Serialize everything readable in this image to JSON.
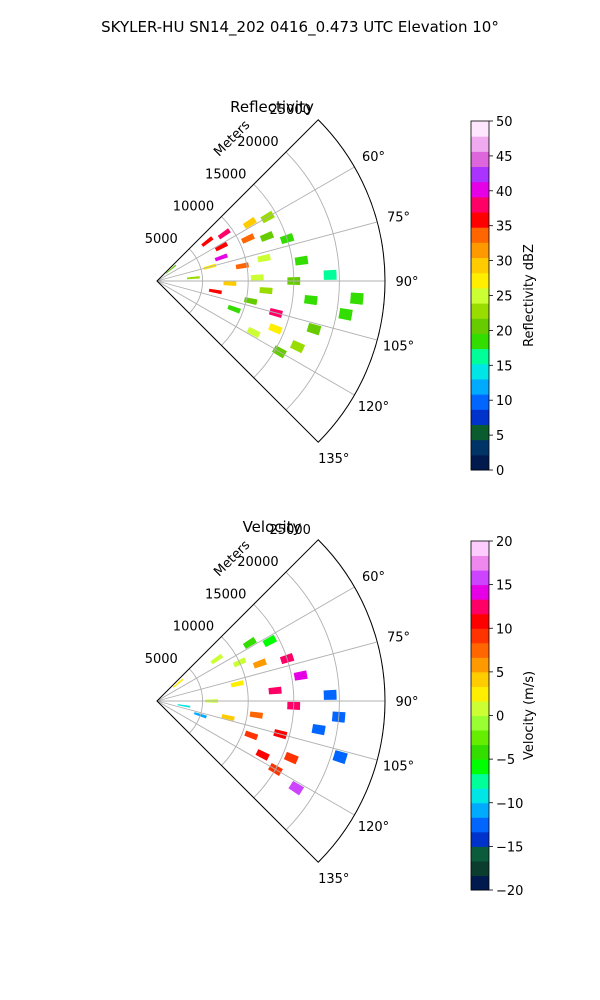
{
  "figure": {
    "suptitle": "SKYLER-HU  SN14_202  0416_0.473 UTC Elevation 10°"
  },
  "colors": {
    "grid": "#b0b0b0",
    "axis": "#000000",
    "reflectivity_stops": [
      "#001a4d",
      "#003366",
      "#0a5c2e",
      "#0033cc",
      "#0066ff",
      "#00aaff",
      "#00e5e5",
      "#00ff99",
      "#33dd00",
      "#66cc00",
      "#99dd00",
      "#ccff33",
      "#ffee00",
      "#ffcc00",
      "#ff9900",
      "#ff6600",
      "#ff0000",
      "#ff0066",
      "#e600e6",
      "#aa33ff",
      "#dd66dd",
      "#f0aaf0",
      "#ffe6ff"
    ],
    "velocity_stops": [
      "#001a4d",
      "#0a3d2e",
      "#0a5c3d",
      "#0033cc",
      "#0066ff",
      "#00aaff",
      "#00e5e5",
      "#00ff99",
      "#00ff00",
      "#33dd00",
      "#66ee00",
      "#99ff33",
      "#ccff33",
      "#ffee00",
      "#ffcc00",
      "#ff9900",
      "#ff6600",
      "#ff3300",
      "#ff0000",
      "#ff0066",
      "#e600e6",
      "#cc44ff",
      "#ee88ee",
      "#ffccff"
    ]
  },
  "chart_data": [
    {
      "type": "heatmap",
      "projection": "polar-sector",
      "title": "Reflectivity",
      "radial_label": "Meters",
      "radial_ticks": [
        5000,
        10000,
        15000,
        20000,
        25000
      ],
      "radial_tick_labels": [
        "5000",
        "10000",
        "15000",
        "20000",
        "25000"
      ],
      "rlim": [
        0,
        25000
      ],
      "theta_ticks": [
        60,
        75,
        90,
        105,
        120,
        135
      ],
      "theta_tick_labels": [
        "60°",
        "75°",
        "90°",
        "105°",
        "120°",
        "135°"
      ],
      "theta_range": [
        45,
        135
      ],
      "grid": true,
      "colorbar": {
        "label": "Reflectivity dBZ",
        "range": [
          0,
          50
        ],
        "ticks": [
          0,
          5,
          10,
          15,
          20,
          25,
          30,
          35,
          40,
          45,
          50
        ],
        "tick_labels": [
          "0",
          "5",
          "10",
          "15",
          "20",
          "25",
          "30",
          "35",
          "40",
          "45",
          "50"
        ]
      },
      "cells": [
        {
          "az": 50,
          "r": 2000,
          "v": 20
        },
        {
          "az": 52,
          "r": 7000,
          "v": 35
        },
        {
          "az": 55,
          "r": 9000,
          "v": 38
        },
        {
          "az": 58,
          "r": 12000,
          "v": 30
        },
        {
          "az": 60,
          "r": 14000,
          "v": 22
        },
        {
          "az": 62,
          "r": 8000,
          "v": 36
        },
        {
          "az": 65,
          "r": 11000,
          "v": 34
        },
        {
          "az": 68,
          "r": 13000,
          "v": 20
        },
        {
          "az": 70,
          "r": 7500,
          "v": 40
        },
        {
          "az": 72,
          "r": 15000,
          "v": 18
        },
        {
          "az": 75,
          "r": 6000,
          "v": 28
        },
        {
          "az": 78,
          "r": 12000,
          "v": 26
        },
        {
          "az": 80,
          "r": 9500,
          "v": 33
        },
        {
          "az": 82,
          "r": 16000,
          "v": 19
        },
        {
          "az": 85,
          "r": 4000,
          "v": 22
        },
        {
          "az": 88,
          "r": 11000,
          "v": 24
        },
        {
          "az": 90,
          "r": 15000,
          "v": 20
        },
        {
          "az": 92,
          "r": 8000,
          "v": 30
        },
        {
          "az": 95,
          "r": 12000,
          "v": 22
        },
        {
          "az": 97,
          "r": 17000,
          "v": 18
        },
        {
          "az": 100,
          "r": 6500,
          "v": 36
        },
        {
          "az": 102,
          "r": 10500,
          "v": 21
        },
        {
          "az": 105,
          "r": 13500,
          "v": 38
        },
        {
          "az": 107,
          "r": 18000,
          "v": 20
        },
        {
          "az": 110,
          "r": 9000,
          "v": 18
        },
        {
          "az": 112,
          "r": 14000,
          "v": 28
        },
        {
          "az": 115,
          "r": 17000,
          "v": 22
        },
        {
          "az": 118,
          "r": 12000,
          "v": 24
        },
        {
          "az": 120,
          "r": 15500,
          "v": 20
        },
        {
          "az": 95,
          "r": 22000,
          "v": 19
        },
        {
          "az": 100,
          "r": 21000,
          "v": 18
        },
        {
          "az": 88,
          "r": 19000,
          "v": 17
        }
      ]
    },
    {
      "type": "heatmap",
      "projection": "polar-sector",
      "title": "Velocity",
      "radial_label": "Meters",
      "radial_ticks": [
        5000,
        10000,
        15000,
        20000,
        25000
      ],
      "radial_tick_labels": [
        "5000",
        "10000",
        "15000",
        "20000",
        "25000"
      ],
      "rlim": [
        0,
        25000
      ],
      "theta_ticks": [
        60,
        75,
        90,
        105,
        120,
        135
      ],
      "theta_tick_labels": [
        "60°",
        "75°",
        "90°",
        "105°",
        "120°",
        "135°"
      ],
      "theta_range": [
        45,
        135
      ],
      "grid": true,
      "colorbar": {
        "label": "Velocity (m/s)",
        "range": [
          -20,
          20
        ],
        "ticks": [
          -20,
          -15,
          -10,
          -5,
          0,
          5,
          10,
          15,
          20
        ],
        "tick_labels": [
          "−20",
          "−15",
          "−10",
          "−5",
          "0",
          "5",
          "10",
          "15",
          "20"
        ]
      },
      "cells": [
        {
          "az": 50,
          "r": 3000,
          "v": 2
        },
        {
          "az": 55,
          "r": 8000,
          "v": 1
        },
        {
          "az": 58,
          "r": 12000,
          "v": -4
        },
        {
          "az": 62,
          "r": 14000,
          "v": -6
        },
        {
          "az": 65,
          "r": 10000,
          "v": 0
        },
        {
          "az": 70,
          "r": 12000,
          "v": 6
        },
        {
          "az": 72,
          "r": 15000,
          "v": 12
        },
        {
          "az": 78,
          "r": 9000,
          "v": 3
        },
        {
          "az": 80,
          "r": 16000,
          "v": 14
        },
        {
          "az": 85,
          "r": 13000,
          "v": 13
        },
        {
          "az": 88,
          "r": 19000,
          "v": -13
        },
        {
          "az": 90,
          "r": 6000,
          "v": 1
        },
        {
          "az": 92,
          "r": 15000,
          "v": 13
        },
        {
          "az": 95,
          "r": 20000,
          "v": -12
        },
        {
          "az": 98,
          "r": 11000,
          "v": 7
        },
        {
          "az": 100,
          "r": 18000,
          "v": -12
        },
        {
          "az": 103,
          "r": 8000,
          "v": 4
        },
        {
          "az": 105,
          "r": 14000,
          "v": 10
        },
        {
          "az": 107,
          "r": 21000,
          "v": -12
        },
        {
          "az": 110,
          "r": 11000,
          "v": 9
        },
        {
          "az": 113,
          "r": 16000,
          "v": 9
        },
        {
          "az": 117,
          "r": 13000,
          "v": 10
        },
        {
          "az": 120,
          "r": 15000,
          "v": 9
        },
        {
          "az": 122,
          "r": 18000,
          "v": 15
        },
        {
          "az": 108,
          "r": 5000,
          "v": -11
        },
        {
          "az": 100,
          "r": 3000,
          "v": -10
        }
      ]
    }
  ]
}
